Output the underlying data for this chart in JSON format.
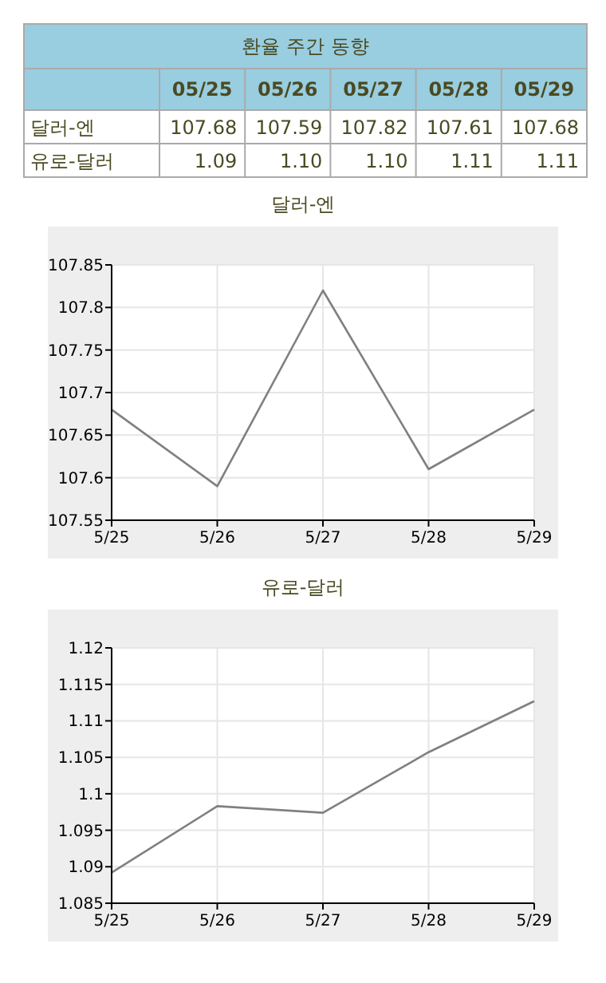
{
  "chart_data": [
    {
      "type": "other",
      "title": "환율 주간 동향",
      "data_labels": true,
      "categories": [
        "05/25",
        "05/26",
        "05/27",
        "05/28",
        "05/29"
      ],
      "series": [
        {
          "name": "달러-엔",
          "values": [
            107.68,
            107.59,
            107.82,
            107.61,
            107.68
          ]
        },
        {
          "name": "유로-달러",
          "values": [
            1.09,
            1.1,
            1.1,
            1.11,
            1.11
          ],
          "value_labels": [
            "1.09",
            "1.10",
            "1.10",
            "1.11",
            "1.11"
          ]
        }
      ]
    },
    {
      "type": "line",
      "title": "달러-엔",
      "categories": [
        "5/25",
        "5/26",
        "5/27",
        "5/28",
        "5/29"
      ],
      "values": [
        107.68,
        107.59,
        107.82,
        107.61,
        107.68
      ],
      "color": "#808080",
      "ylim": [
        107.55,
        107.85
      ],
      "yticks": [
        107.55,
        107.6,
        107.65,
        107.7,
        107.75,
        107.8,
        107.85
      ],
      "grid": true
    },
    {
      "type": "line",
      "title": "유로-달러",
      "categories": [
        "5/25",
        "5/26",
        "5/27",
        "5/28",
        "5/29"
      ],
      "values": [
        1.0892,
        1.0983,
        1.0974,
        1.1057,
        1.1127
      ],
      "color": "#808080",
      "ylim": [
        1.085,
        1.12
      ],
      "yticks": [
        1.085,
        1.09,
        1.095,
        1.1,
        1.105,
        1.11,
        1.115,
        1.12
      ],
      "grid": true
    }
  ]
}
